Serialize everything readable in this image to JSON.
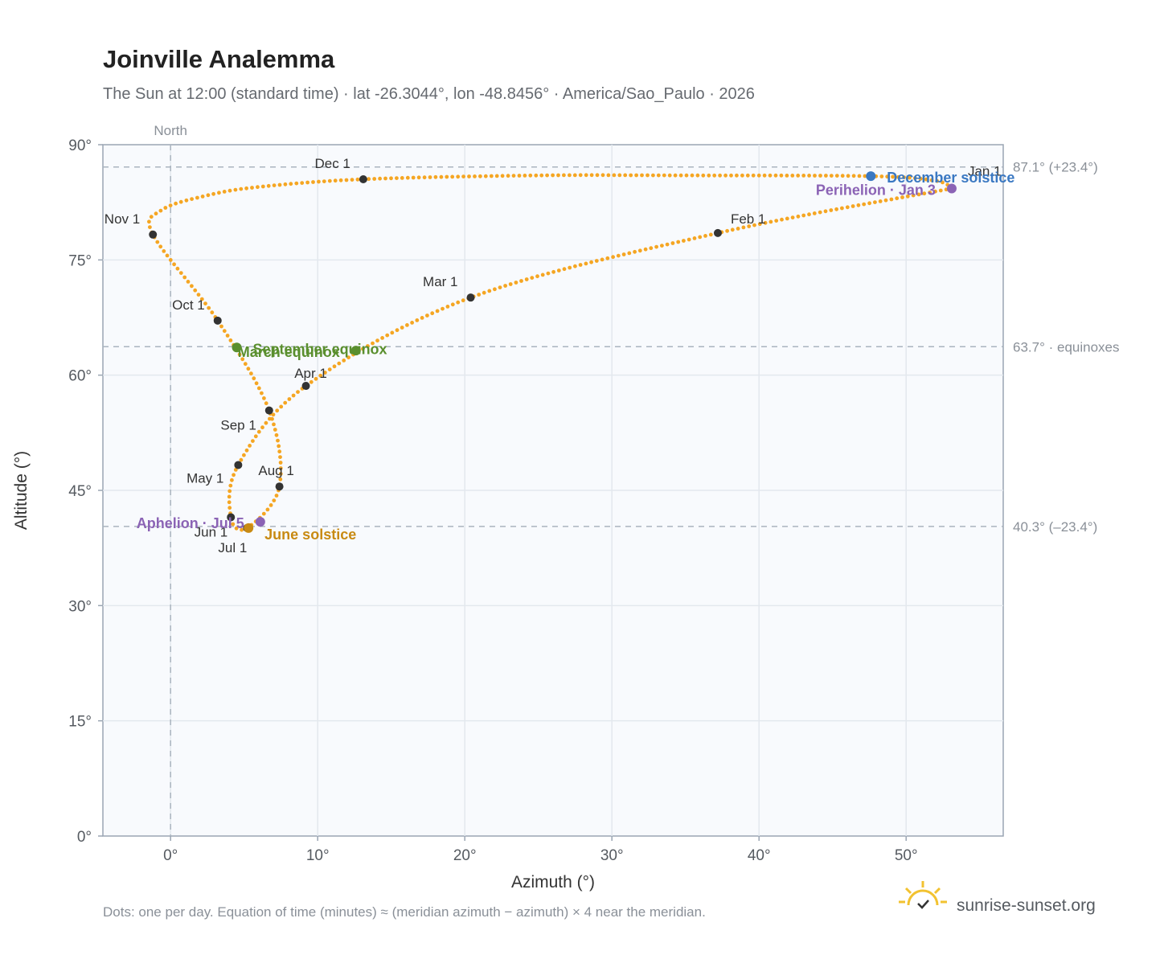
{
  "title": "Joinville Analemma",
  "subtitle": "The Sun at 12:00 (standard time) · lat -26.3044°, lon -48.8456° · America/Sao_Paulo · 2026",
  "footnote": "Dots: one per day. Equation of time (minutes) ≈ (meridian azimuth − azimuth) × 4 near the meridian.",
  "brand": {
    "name": "sunrise-sunset.org",
    "logo_icon": "sun-logo-icon"
  },
  "chart_data": {
    "type": "scatter",
    "xlabel": "Azimuth (°)",
    "ylabel": "Altitude (°)",
    "xlim": [
      -4.6,
      56.6
    ],
    "ylim": [
      0,
      90
    ],
    "xticks": [
      0,
      10,
      20,
      30,
      40,
      50
    ],
    "xtick_labels": [
      "0°",
      "10°",
      "20°",
      "30°",
      "40°",
      "50°"
    ],
    "yticks": [
      0,
      15,
      30,
      45,
      60,
      75,
      90
    ],
    "ytick_labels": [
      "0°",
      "15°",
      "30°",
      "45°",
      "60°",
      "75°",
      "90°"
    ],
    "grid": true,
    "north_line": {
      "x": 0,
      "label": "North"
    },
    "reference_lines": [
      {
        "y": 87.1,
        "label": "87.1° (+23.4°)"
      },
      {
        "y": 63.7,
        "label": "63.7° · equinoxes"
      },
      {
        "y": 40.3,
        "label": "40.3° (–23.4°)"
      }
    ],
    "month_points": [
      {
        "label": "Jan 1",
        "x": 53.1,
        "y": 84.3
      },
      {
        "label": "Feb 1",
        "x": 37.2,
        "y": 78.5
      },
      {
        "label": "Mar 1",
        "x": 20.4,
        "y": 70.1
      },
      {
        "label": "Apr 1",
        "x": 9.2,
        "y": 58.6
      },
      {
        "label": "May 1",
        "x": 4.6,
        "y": 48.3
      },
      {
        "label": "Jun 1",
        "x": 4.1,
        "y": 41.5
      },
      {
        "label": "Jul 1",
        "x": 5.2,
        "y": 40.1
      },
      {
        "label": "Aug 1",
        "x": 7.4,
        "y": 45.5
      },
      {
        "label": "Sep 1",
        "x": 6.7,
        "y": 55.4
      },
      {
        "label": "Oct 1",
        "x": 3.2,
        "y": 67.1
      },
      {
        "label": "Nov 1",
        "x": -1.2,
        "y": 78.3
      },
      {
        "label": "Dec 1",
        "x": 13.1,
        "y": 85.5
      }
    ],
    "events": [
      {
        "label": "December solstice",
        "x": 47.6,
        "y": 85.9,
        "color": "#3a78c2"
      },
      {
        "label": "Perihelion · Jan 3",
        "x": 53.1,
        "y": 84.3,
        "color": "#8b63b5"
      },
      {
        "label": "March equinox",
        "x": 12.6,
        "y": 63.2,
        "color": "#5a8f2e"
      },
      {
        "label": "September equinox",
        "x": 4.5,
        "y": 63.6,
        "color": "#5a8f2e"
      },
      {
        "label": "June solstice",
        "x": 5.3,
        "y": 40.1,
        "color": "#c88a12"
      },
      {
        "label": "Aphelion · Jul 5",
        "x": 6.1,
        "y": 40.9,
        "color": "#8b63b5"
      }
    ],
    "series": [
      {
        "values": [
          [
            53.1,
            84.3
          ],
          [
            37.2,
            78.5
          ],
          [
            20.4,
            70.1
          ],
          [
            9.2,
            58.6
          ],
          [
            4.6,
            48.3
          ],
          [
            4.1,
            41.5
          ],
          [
            5.2,
            40.1
          ],
          [
            7.4,
            45.5
          ],
          [
            6.7,
            55.4
          ],
          [
            3.2,
            67.1
          ],
          [
            -1.2,
            78.3
          ],
          [
            -0.6,
            81.5
          ],
          [
            2.5,
            83.4
          ],
          [
            6.0,
            84.5
          ],
          [
            13.1,
            85.5
          ],
          [
            25.0,
            86.0
          ],
          [
            35.0,
            86.0
          ],
          [
            47.6,
            85.9
          ],
          [
            52.0,
            85.3
          ],
          [
            53.1,
            84.3
          ]
        ]
      }
    ],
    "dot_color": "#f5a623",
    "month_dot_color": "#333333"
  }
}
